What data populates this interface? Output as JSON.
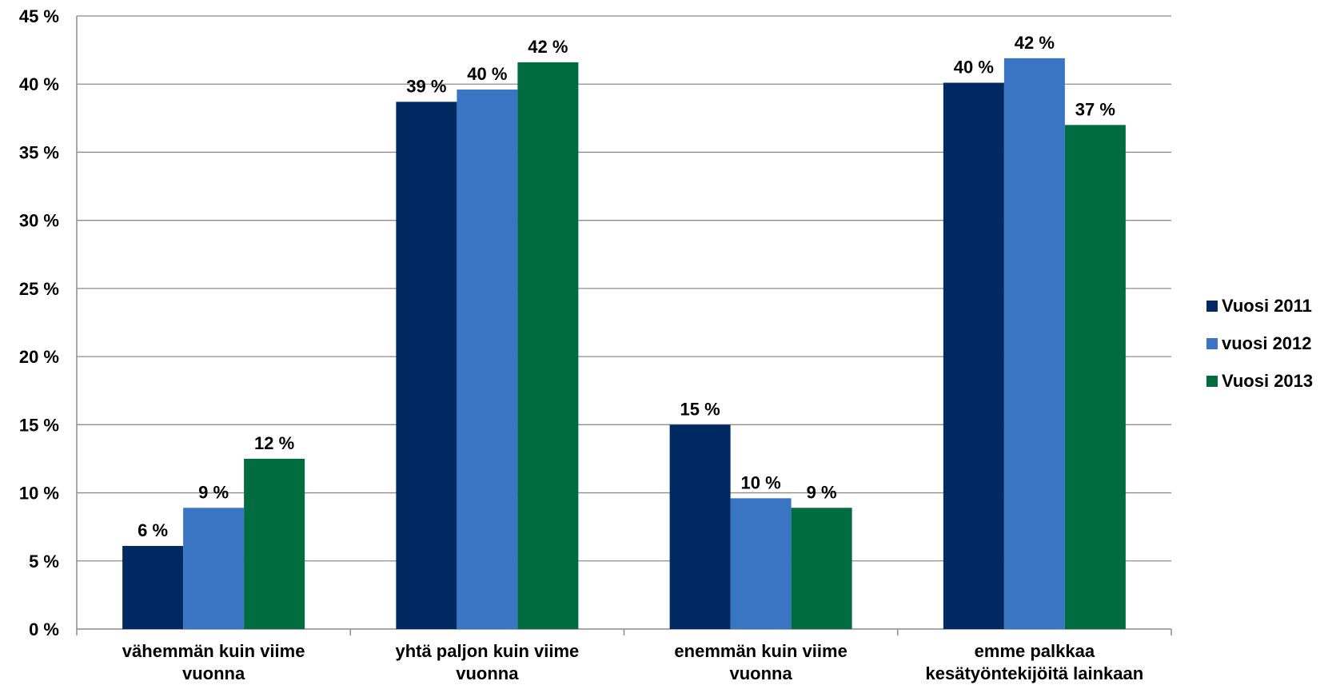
{
  "chart_data": {
    "type": "bar",
    "categories": [
      [
        "vähemmän kuin viime",
        "vuonna"
      ],
      [
        "yhtä paljon kuin viime",
        "vuonna"
      ],
      [
        "enemmän kuin viime",
        "vuonna"
      ],
      [
        "emme palkkaa",
        "kesätyöntekijöitä lainkaan"
      ]
    ],
    "series": [
      {
        "name": "Vuosi 2011",
        "color": "#002A61",
        "values": [
          6.1,
          38.7,
          15.0,
          40.1
        ],
        "labels": [
          "6 %",
          "39 %",
          "15 %",
          "40 %"
        ]
      },
      {
        "name": "vuosi 2012",
        "color": "#3A75C4",
        "values": [
          8.9,
          39.6,
          9.6,
          41.9
        ],
        "labels": [
          "9 %",
          "40 %",
          "10 %",
          "42 %"
        ]
      },
      {
        "name": "Vuosi 2013",
        "color": "#006C3F",
        "values": [
          12.5,
          41.6,
          8.9,
          37.0
        ],
        "labels": [
          "12 %",
          "42 %",
          "9 %",
          "37 %"
        ]
      }
    ],
    "yticks": [
      0,
      5,
      10,
      15,
      20,
      25,
      30,
      35,
      40,
      45
    ],
    "ytick_suffix": " %",
    "ylim": [
      0,
      45
    ],
    "grid": true,
    "legend_position": "right",
    "title": "",
    "xlabel": "",
    "ylabel": ""
  }
}
